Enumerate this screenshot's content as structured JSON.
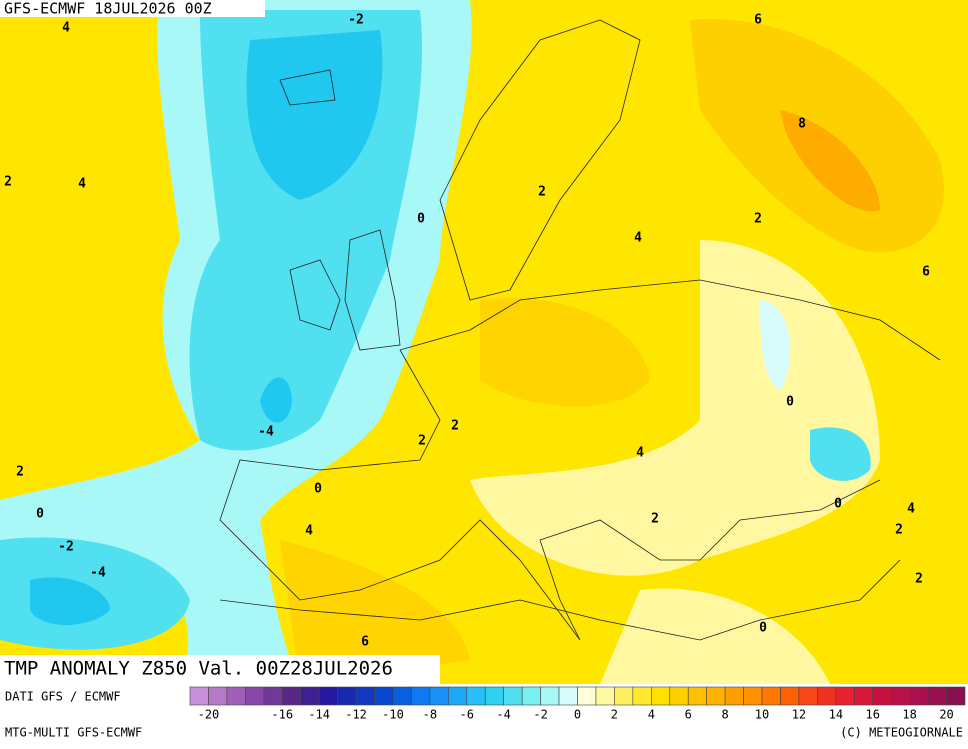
{
  "header": {
    "run": "GFS-ECMWF 18JUL2026 00Z"
  },
  "map": {
    "title": "TMP ANOMALY Z850 Val. 00Z28JUL2026",
    "contour_labels": [
      "4",
      "-2",
      "6",
      "8",
      "2",
      "4",
      "0",
      "2",
      "2",
      "4",
      "6",
      "0",
      "-4",
      "2",
      "2",
      "4",
      "2",
      "0",
      "0",
      "0",
      "4",
      "2",
      "4",
      "2",
      "-2",
      "-4",
      "2",
      "6",
      "0"
    ]
  },
  "footer": {
    "source": "DATI GFS / ECMWF",
    "model": "MTG-MULTI GFS-ECMWF",
    "copyright": "(C) METEOGIORNALE"
  },
  "colorbar": {
    "colors": [
      "#c890d8",
      "#b878c8",
      "#a060b8",
      "#8848a8",
      "#703898",
      "#582888",
      "#402090",
      "#2818a0",
      "#1828b0",
      "#1038c0",
      "#0848d0",
      "#0860e0",
      "#1078f0",
      "#1890f8",
      "#20a8f8",
      "#28c0f8",
      "#30d0f0",
      "#50e0f0",
      "#78f0f0",
      "#a8f8f8",
      "#d8fcfc",
      "#fffcd8",
      "#fff8a0",
      "#fff060",
      "#ffe830",
      "#ffe000",
      "#ffd000",
      "#ffc000",
      "#ffb000",
      "#ffa000",
      "#ff9000",
      "#ff7800",
      "#ff6000",
      "#f84818",
      "#f03020",
      "#e82030",
      "#d81838",
      "#c81040",
      "#b81048",
      "#a81050",
      "#981050",
      "#881050"
    ],
    "ticks": [
      -20,
      -16,
      -14,
      -12,
      -10,
      -8,
      -6,
      -4,
      -2,
      0,
      2,
      4,
      6,
      8,
      10,
      12,
      14,
      16,
      18,
      20
    ]
  }
}
